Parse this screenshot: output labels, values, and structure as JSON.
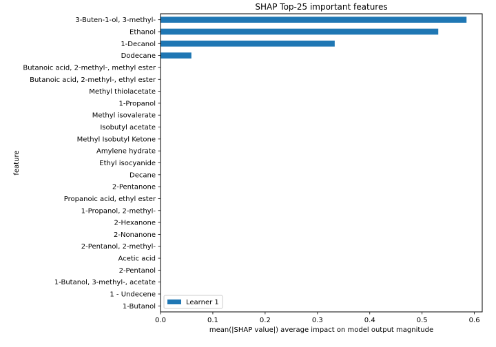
{
  "chart_data": {
    "type": "bar",
    "orientation": "horizontal",
    "title": "SHAP Top-25 important features",
    "xlabel": "mean(|SHAP value|) average impact on model output magnitude",
    "ylabel": "feature",
    "xlim": [
      0,
      0.615
    ],
    "xticks": [
      0,
      0.1,
      0.2,
      0.3,
      0.4,
      0.5,
      0.6
    ],
    "xtick_labels": [
      "0.0",
      "0.1",
      "0.2",
      "0.3",
      "0.4",
      "0.5",
      "0.6"
    ],
    "grid": false,
    "legend_position": "lower-left",
    "categories": [
      "3-Buten-1-ol, 3-methyl-",
      "Ethanol",
      "1-Decanol",
      "Dodecane",
      "Butanoic acid, 2-methyl-, methyl ester",
      "Butanoic acid, 2-methyl-, ethyl ester",
      "Methyl thiolacetate",
      "1-Propanol",
      "Methyl isovalerate",
      "Isobutyl acetate",
      "Methyl Isobutyl Ketone",
      "Amylene hydrate",
      "Ethyl isocyanide",
      "Decane",
      "2-Pentanone",
      "Propanoic acid, ethyl ester",
      "1-Propanol, 2-methyl-",
      "2-Hexanone",
      "2-Nonanone ",
      "2-Pentanol, 2-methyl-",
      "Acetic acid",
      "2-Pentanol",
      "1-Butanol, 3-methyl-, acetate",
      "1 - Undecene",
      "1-Butanol"
    ],
    "series": [
      {
        "name": "Learner 1",
        "color": "#1f77b4",
        "values": [
          0.585,
          0.531,
          0.333,
          0.059,
          0,
          0,
          0,
          0,
          0,
          0,
          0,
          0,
          0,
          0,
          0,
          0,
          0,
          0,
          0,
          0,
          0,
          0,
          0,
          0,
          0
        ]
      }
    ]
  }
}
